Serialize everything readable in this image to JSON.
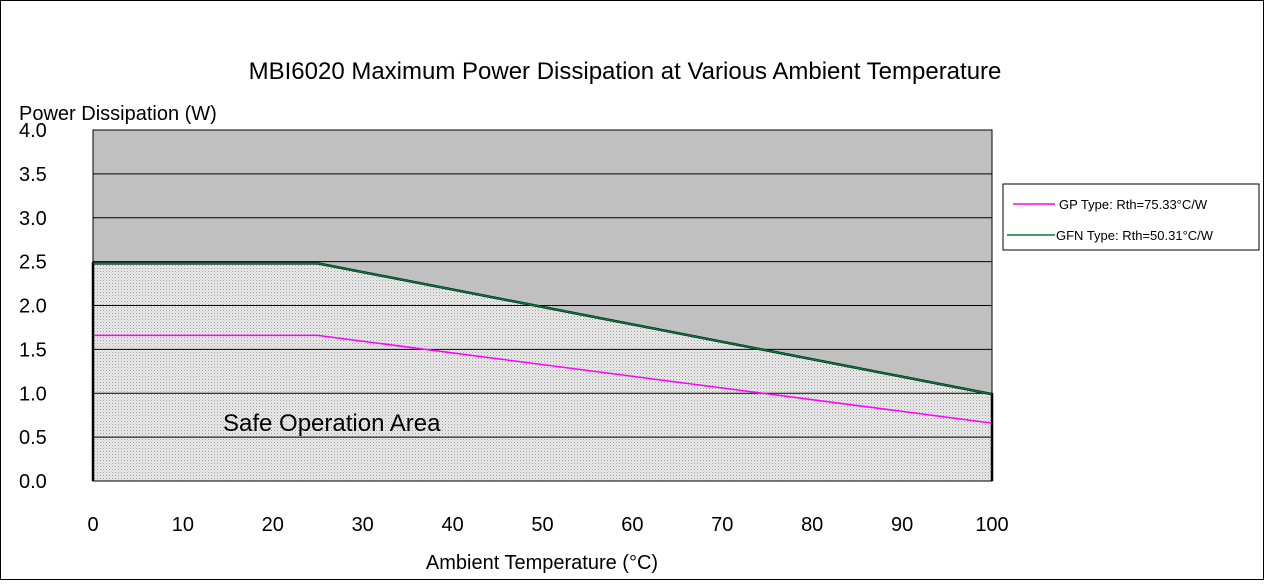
{
  "chart_data": {
    "type": "area",
    "title": "MBI6020 Maximum Power Dissipation at Various Ambient Temperature",
    "xlabel": "Ambient Temperature (°C)",
    "ylabel": "Power Dissipation (W)",
    "xlim": [
      0,
      100
    ],
    "ylim": [
      0,
      4.0
    ],
    "x_ticks": [
      "0",
      "10",
      "20",
      "30",
      "40",
      "50",
      "60",
      "70",
      "80",
      "90",
      "100"
    ],
    "y_ticks": [
      "0.0",
      "0.5",
      "1.0",
      "1.5",
      "2.0",
      "2.5",
      "3.0",
      "3.5",
      "4.0"
    ],
    "grid": "horizontal",
    "legend_position": "right",
    "annotation": "Safe Operation Area",
    "series": [
      {
        "name": "GP Type: Rth=75.33°C/W",
        "color": "#ff00ff",
        "x": [
          0,
          25,
          100
        ],
        "y": [
          1.66,
          1.66,
          0.66
        ]
      },
      {
        "name": "GFN Type: Rth=50.31°C/W",
        "color": "#007f3f",
        "x": [
          0,
          25,
          100
        ],
        "y": [
          2.48,
          2.48,
          0.99
        ]
      }
    ],
    "colors": {
      "plot_background": "#c0c0c0",
      "safe_area_fill": "#e8e8e8"
    }
  }
}
